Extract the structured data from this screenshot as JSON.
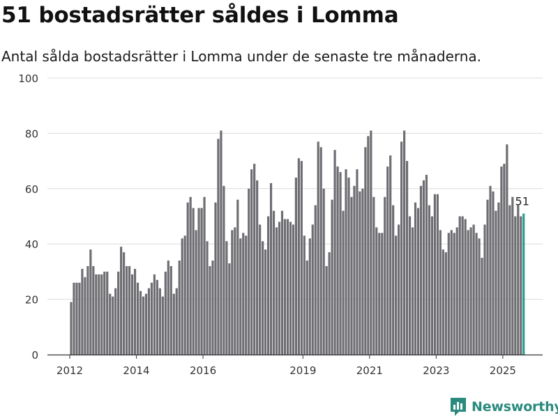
{
  "title": "51 bostadsrätter såldes i Lomma",
  "subtitle": "Antal sålda bostadsrätter i Lomma under de senaste tre månaderna.",
  "brand": {
    "name": "Newsworthy"
  },
  "colors": {
    "bar": "#6d6d72",
    "highlight": "#2a9d8f",
    "grid": "#dcdcdc",
    "brand": "#2a8a7e"
  },
  "chart_data": {
    "type": "bar",
    "title": "51 bostadsrätter såldes i Lomma",
    "subtitle": "Antal sålda bostadsrätter i Lomma under de senaste tre månaderna.",
    "xlabel": "",
    "ylabel": "",
    "ylim": [
      0,
      100
    ],
    "yticks": [
      0,
      20,
      40,
      60,
      80,
      100
    ],
    "xticks": [
      "2012",
      "2014",
      "2016",
      "2019",
      "2021",
      "2023",
      "2025"
    ],
    "grid": true,
    "last_label": "51",
    "start": "2012-01",
    "end": "2025-05",
    "values": [
      19,
      26,
      26,
      26,
      31,
      28,
      32,
      38,
      32,
      29,
      29,
      29,
      30,
      30,
      22,
      21,
      24,
      30,
      39,
      37,
      32,
      32,
      29,
      31,
      26,
      23,
      21,
      22,
      24,
      26,
      29,
      27,
      24,
      21,
      30,
      34,
      32,
      22,
      24,
      34,
      42,
      43,
      55,
      57,
      53,
      45,
      53,
      53,
      57,
      41,
      32,
      34,
      55,
      78,
      81,
      61,
      41,
      33,
      45,
      46,
      56,
      42,
      44,
      43,
      60,
      67,
      69,
      63,
      47,
      41,
      38,
      50,
      62,
      52,
      46,
      48,
      52,
      49,
      49,
      48,
      47,
      64,
      71,
      70,
      43,
      34,
      42,
      47,
      54,
      77,
      75,
      60,
      32,
      37,
      56,
      74,
      68,
      66,
      52,
      67,
      64,
      57,
      61,
      67,
      59,
      60,
      75,
      79,
      81,
      57,
      46,
      44,
      44,
      57,
      68,
      72,
      54,
      43,
      47,
      77,
      81,
      70,
      50,
      46,
      55,
      53,
      61,
      63,
      65,
      54,
      50,
      58,
      58,
      45,
      38,
      37,
      44,
      45,
      44,
      46,
      50,
      50,
      49,
      45,
      46,
      47,
      44,
      42,
      35,
      47,
      56,
      61,
      59,
      52,
      55,
      68,
      69,
      76,
      54,
      57,
      50,
      54,
      50,
      51
    ]
  }
}
